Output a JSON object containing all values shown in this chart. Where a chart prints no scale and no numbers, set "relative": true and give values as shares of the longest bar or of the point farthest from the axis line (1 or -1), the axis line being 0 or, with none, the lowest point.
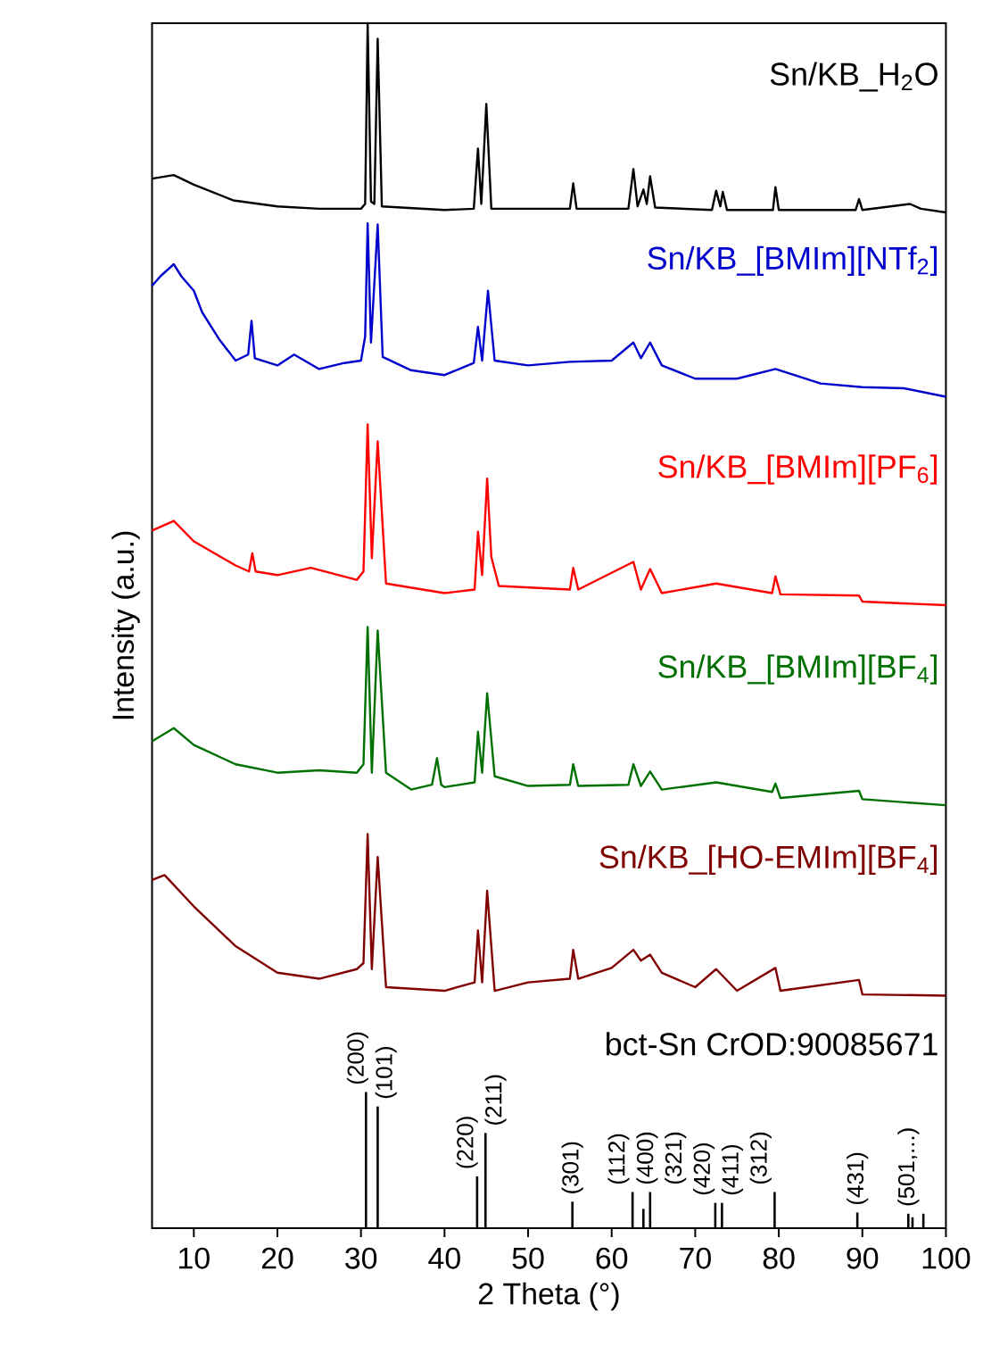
{
  "chart_data": {
    "type": "line",
    "relative": true,
    "xlim": [
      5,
      100
    ],
    "xticks": [
      10,
      20,
      30,
      40,
      50,
      60,
      70,
      80,
      90,
      100
    ],
    "xlabel": "2 Theta (°)",
    "ylabel": "Intensity (a.u.)",
    "series": [
      {
        "name": "Sn/KB_H$_{2}$O",
        "color": "#000000",
        "x": [
          5,
          7.6,
          10,
          14.7,
          20,
          25,
          30,
          30.5,
          30.8,
          31.2,
          31.6,
          32.0,
          32.5,
          40,
          43.5,
          44.0,
          44.4,
          45.0,
          45.6,
          55,
          55.4,
          55.8,
          62,
          62.6,
          63.1,
          63.8,
          64.2,
          64.6,
          65.2,
          72,
          72.5,
          73.0,
          73.3,
          73.8,
          79.3,
          79.6,
          80.0,
          89.2,
          89.6,
          90,
          95.7,
          97,
          100
        ],
        "values": [
          0.871,
          0.874,
          0.866,
          0.853,
          0.848,
          0.846,
          0.846,
          0.85,
          1.0,
          0.852,
          0.85,
          0.987,
          0.848,
          0.845,
          0.846,
          0.896,
          0.85,
          0.933,
          0.846,
          0.846,
          0.867,
          0.846,
          0.846,
          0.879,
          0.848,
          0.862,
          0.85,
          0.873,
          0.847,
          0.845,
          0.861,
          0.848,
          0.86,
          0.845,
          0.845,
          0.864,
          0.845,
          0.845,
          0.854,
          0.845,
          0.85,
          0.846,
          0.843
        ]
      },
      {
        "name": "Sn/KB_[BMIm][NTf$_{2}$]",
        "color": "#0000cc",
        "x": [
          5,
          6,
          7.6,
          8.5,
          10,
          11,
          13,
          15,
          16.5,
          16.9,
          17.3,
          20,
          22,
          25,
          28,
          30,
          30.5,
          30.8,
          31.2,
          32.0,
          32.6,
          36,
          40,
          43.5,
          44,
          44.5,
          45.2,
          46,
          50,
          55,
          60,
          62.6,
          63.5,
          64.6,
          66,
          70,
          75,
          79.6,
          85,
          90,
          95,
          100
        ],
        "values": [
          0.782,
          0.79,
          0.8,
          0.79,
          0.778,
          0.76,
          0.738,
          0.72,
          0.725,
          0.753,
          0.722,
          0.716,
          0.725,
          0.713,
          0.718,
          0.72,
          0.74,
          0.834,
          0.735,
          0.833,
          0.723,
          0.712,
          0.708,
          0.718,
          0.748,
          0.72,
          0.778,
          0.72,
          0.716,
          0.719,
          0.72,
          0.735,
          0.722,
          0.735,
          0.716,
          0.705,
          0.705,
          0.713,
          0.701,
          0.698,
          0.697,
          0.69
        ]
      },
      {
        "name": "Sn/KB_[BMIm][PF$_{6}$]",
        "color": "#ff0000",
        "x": [
          5,
          7.6,
          10,
          15,
          16.6,
          17,
          17.4,
          20,
          24,
          29.5,
          30.3,
          30.8,
          31.3,
          32.0,
          33,
          40,
          43.6,
          44.0,
          44.5,
          45.1,
          45.6,
          46.5,
          55,
          55.4,
          56,
          62.6,
          63.5,
          64.6,
          66,
          72.5,
          79.2,
          79.6,
          80.2,
          89.6,
          90,
          100
        ],
        "values": [
          0.579,
          0.587,
          0.57,
          0.55,
          0.545,
          0.56,
          0.545,
          0.542,
          0.548,
          0.538,
          0.545,
          0.667,
          0.556,
          0.653,
          0.535,
          0.527,
          0.53,
          0.578,
          0.542,
          0.622,
          0.557,
          0.533,
          0.53,
          0.548,
          0.53,
          0.553,
          0.53,
          0.547,
          0.527,
          0.535,
          0.527,
          0.541,
          0.526,
          0.525,
          0.52,
          0.517
        ]
      },
      {
        "name": "Sn/KB_[BMIm][BF$_{4}$]",
        "color": "#007000",
        "x": [
          5,
          7.6,
          10,
          15,
          20,
          25,
          29.5,
          30.3,
          30.8,
          31.3,
          32.0,
          33,
          36,
          38.5,
          39.1,
          39.6,
          40,
          43.6,
          44.0,
          44.5,
          45.1,
          46,
          50,
          55,
          55.4,
          56,
          62,
          62.6,
          63.5,
          64.6,
          66,
          72.5,
          79.2,
          79.6,
          80.2,
          89.6,
          90,
          100
        ],
        "values": [
          0.404,
          0.415,
          0.401,
          0.385,
          0.378,
          0.38,
          0.378,
          0.385,
          0.499,
          0.378,
          0.496,
          0.378,
          0.364,
          0.368,
          0.39,
          0.368,
          0.366,
          0.37,
          0.412,
          0.378,
          0.444,
          0.375,
          0.367,
          0.368,
          0.385,
          0.367,
          0.368,
          0.385,
          0.367,
          0.379,
          0.364,
          0.37,
          0.362,
          0.369,
          0.357,
          0.363,
          0.356,
          0.351
        ]
      },
      {
        "name": "Sn/KB_[HO-EMIm][BF$_{4}$]",
        "color": "#800000",
        "x": [
          5,
          6.5,
          10,
          15,
          20,
          25,
          29.5,
          30.3,
          30.8,
          31.3,
          32.0,
          33,
          40,
          43.6,
          44.0,
          44.5,
          45.1,
          46,
          50,
          55,
          55.4,
          56,
          60,
          62.6,
          63.5,
          64.6,
          66,
          70,
          72.5,
          75,
          79.6,
          80.2,
          89.6,
          90,
          100
        ],
        "values": [
          0.289,
          0.293,
          0.267,
          0.234,
          0.212,
          0.207,
          0.215,
          0.22,
          0.327,
          0.215,
          0.308,
          0.2,
          0.197,
          0.204,
          0.247,
          0.204,
          0.28,
          0.197,
          0.204,
          0.207,
          0.231,
          0.207,
          0.216,
          0.231,
          0.222,
          0.227,
          0.212,
          0.2,
          0.215,
          0.197,
          0.216,
          0.197,
          0.206,
          0.194,
          0.193
        ]
      },
      {
        "type": "bar",
        "color": "#000000",
        "x": [
          30.6,
          32.0,
          43.9,
          44.9,
          55.3,
          62.5,
          63.8,
          64.6,
          72.4,
          73.2,
          79.5,
          89.4,
          95.5,
          96.0,
          97.3
        ],
        "values": [
          0.113,
          0.101,
          0.043,
          0.079,
          0.022,
          0.03,
          0.016,
          0.03,
          0.021,
          0.021,
          0.03,
          0.013,
          0.012,
          0.009,
          0.012
        ]
      }
    ],
    "annotations": [
      "bct-Sn CrOD:90085671",
      {
        "text": "(200)",
        "x": 30.6,
        "y": 0.113
      },
      {
        "text": "(101)",
        "x": 32.0,
        "y": 0.101
      },
      {
        "text": "(220)",
        "x": 43.9,
        "y": 0.043
      },
      {
        "text": "(211)",
        "x": 44.9,
        "y": 0.079
      },
      {
        "text": "(301)",
        "x": 55.3,
        "y": 0.022
      },
      {
        "text": "(112)",
        "x": 62.5,
        "y": 0.03
      },
      {
        "text": "(400)",
        "x": 63.8,
        "y": 0.016
      },
      {
        "text": "(321)",
        "x": 64.6,
        "y": 0.03
      },
      {
        "text": "(420)",
        "x": 72.4,
        "y": 0.021
      },
      {
        "text": "(411)",
        "x": 73.2,
        "y": 0.021
      },
      {
        "text": "(312)",
        "x": 79.5,
        "y": 0.03
      },
      {
        "text": "(431)",
        "x": 89.4,
        "y": 0.013
      },
      {
        "text": "(501,...)",
        "x": 95.5,
        "y": 0.012
      }
    ]
  }
}
